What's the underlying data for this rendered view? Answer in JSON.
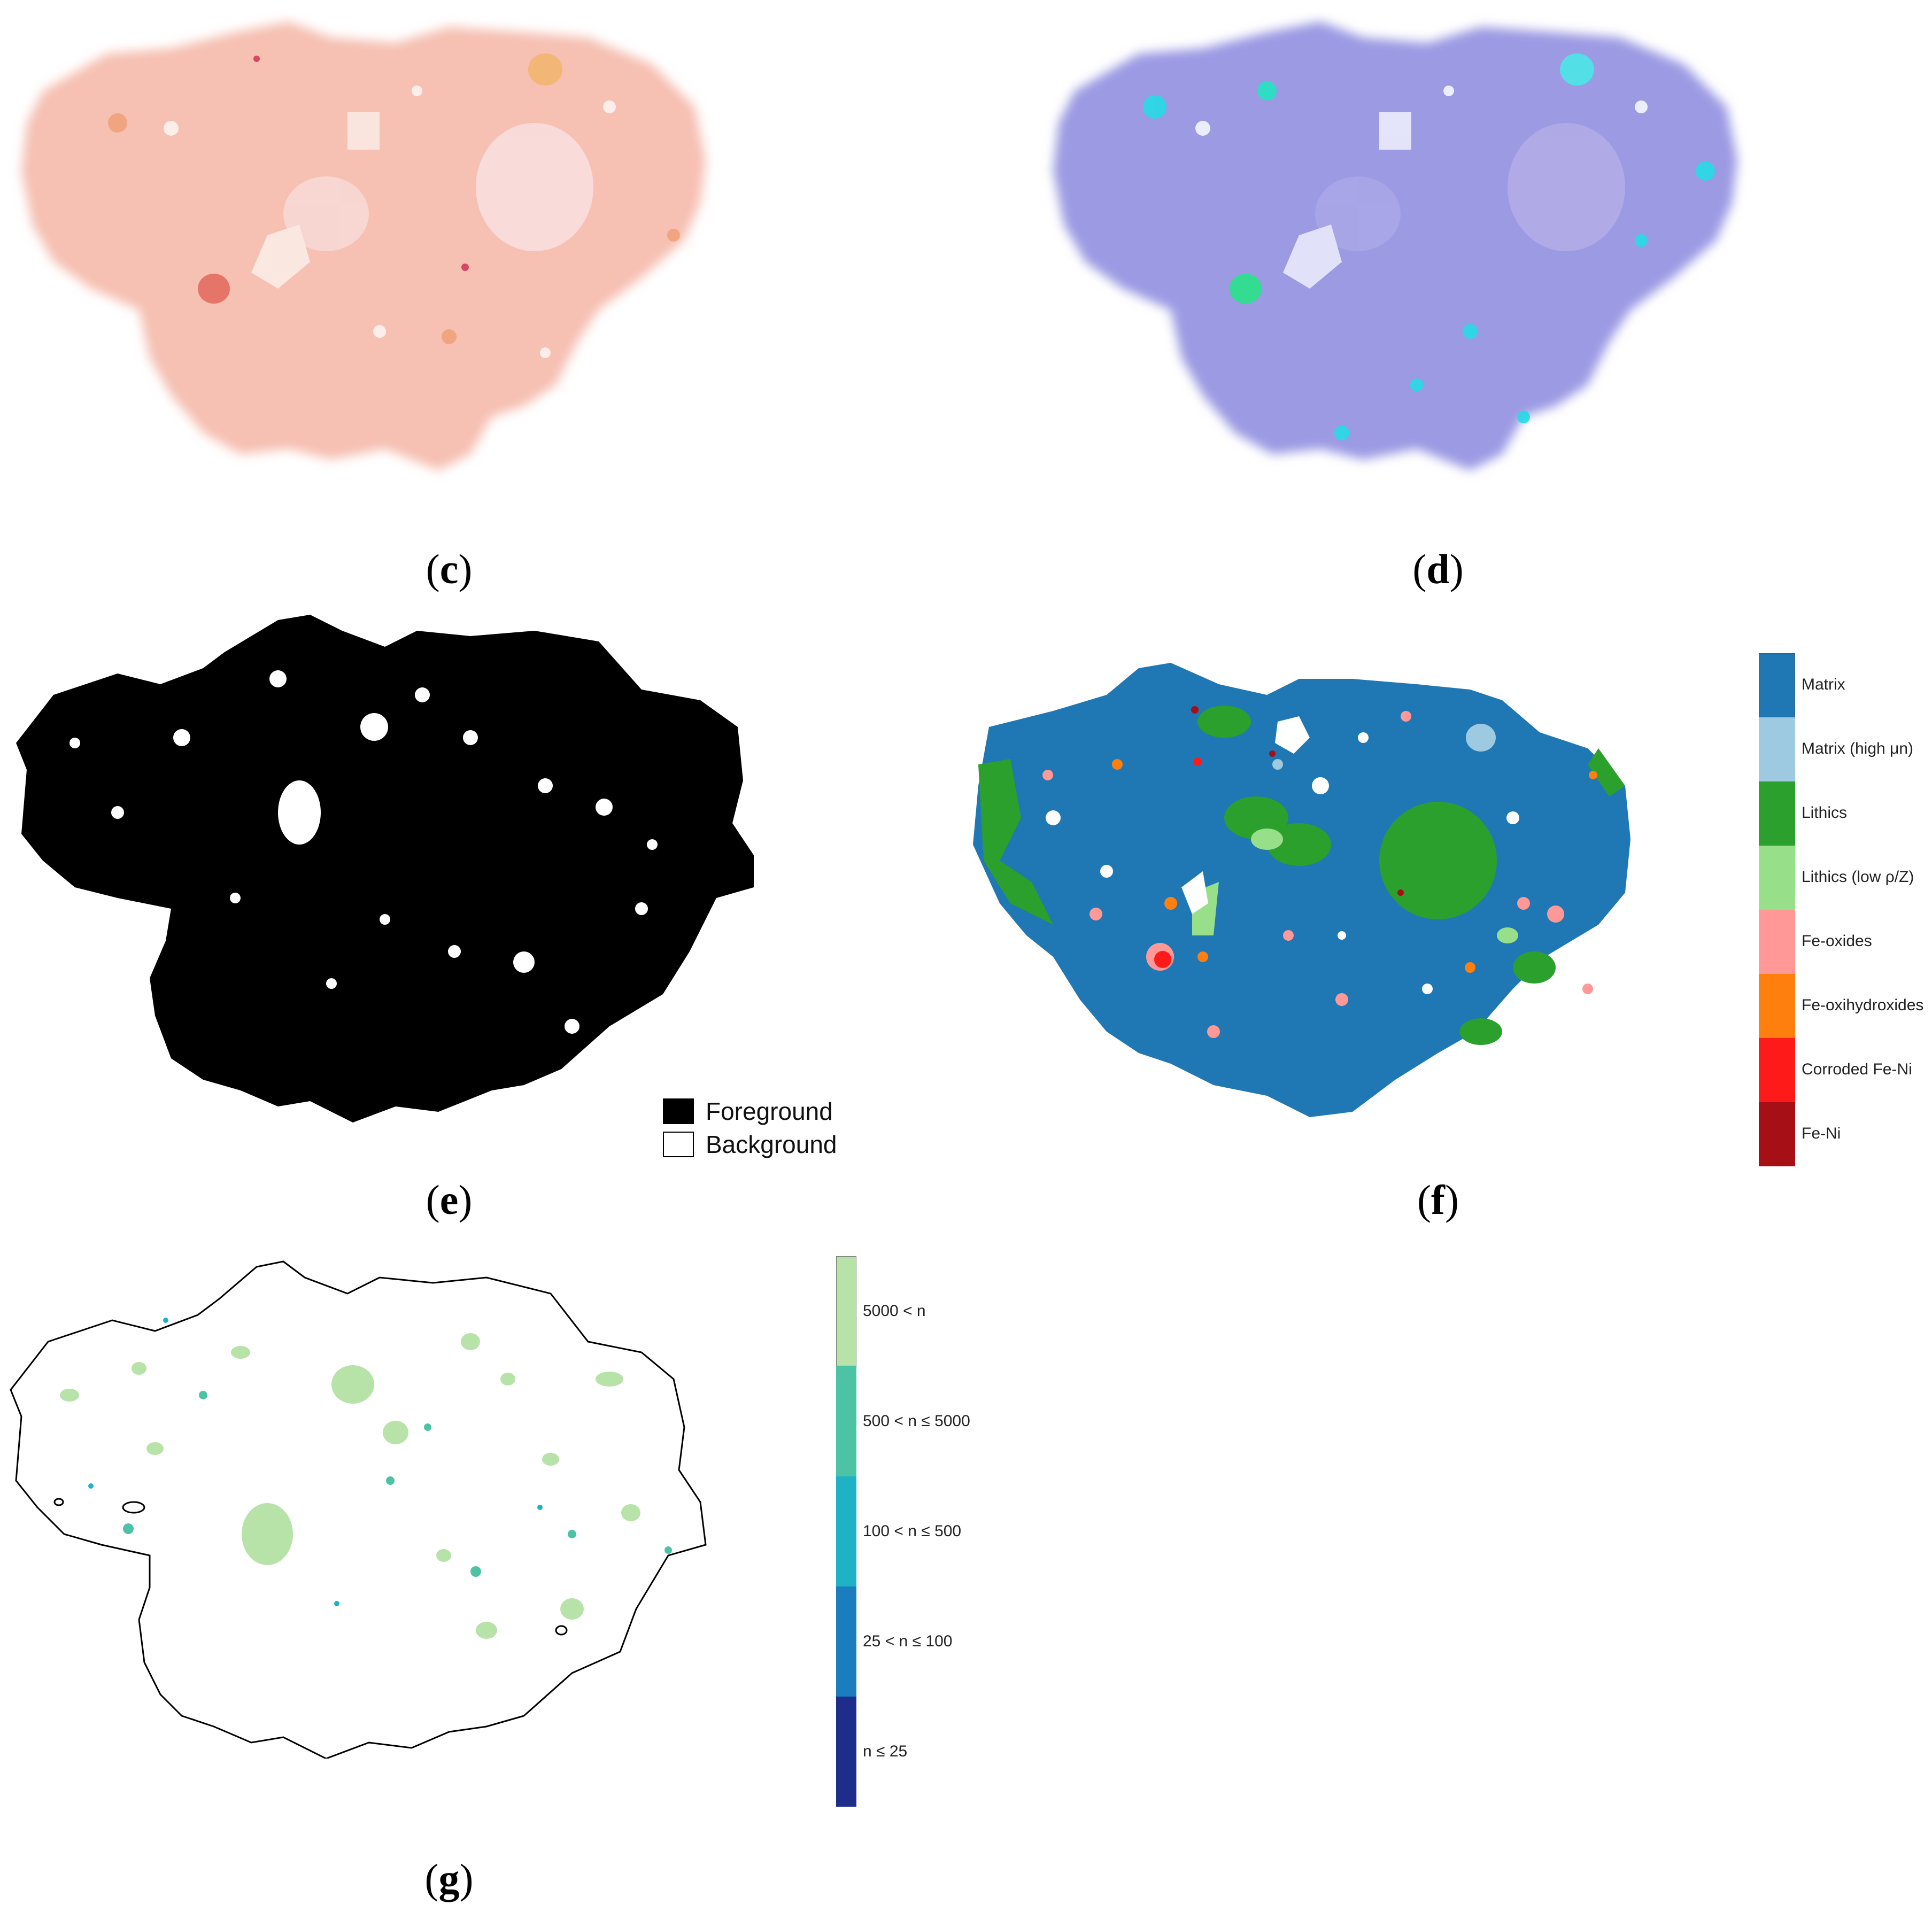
{
  "captions": {
    "c": "c",
    "d": "d",
    "e": "e",
    "f": "f",
    "g": "g"
  },
  "panel_e_legend": [
    {
      "label": "Foreground",
      "color": "#000000"
    },
    {
      "label": "Background",
      "color": "#ffffff"
    }
  ],
  "panel_f_legend": [
    {
      "label": "Matrix",
      "color": "#1f77b4"
    },
    {
      "label": "Matrix (high μn)",
      "color": "#9ecae1"
    },
    {
      "label": "Lithics",
      "color": "#2ca02c"
    },
    {
      "label": "Lithics (low ρ/Z)",
      "color": "#98df8a"
    },
    {
      "label": "Fe-oxides",
      "color": "#ff9896"
    },
    {
      "label": "Fe-oxihydroxides",
      "color": "#ff7f0e"
    },
    {
      "label": "Corroded Fe-Ni",
      "color": "#ff1a1a"
    },
    {
      "label": "Fe-Ni",
      "color": "#a50f15"
    }
  ],
  "panel_g_legend": [
    {
      "label": "5000 < n",
      "color": "#b7e2a8"
    },
    {
      "label": "500 < n ≤ 5000",
      "color": "#4dc3a6"
    },
    {
      "label": "100 < n ≤ 500",
      "color": "#1fb2c4"
    },
    {
      "label": "25 < n ≤ 100",
      "color": "#1b7dbd"
    },
    {
      "label": "n ≤ 25",
      "color": "#1f2d8a"
    }
  ],
  "colors": {
    "panel_c_base": "#f7c2b3",
    "panel_d_base": "#9b9ae3",
    "panel_d_accent": "#22d3e8"
  }
}
